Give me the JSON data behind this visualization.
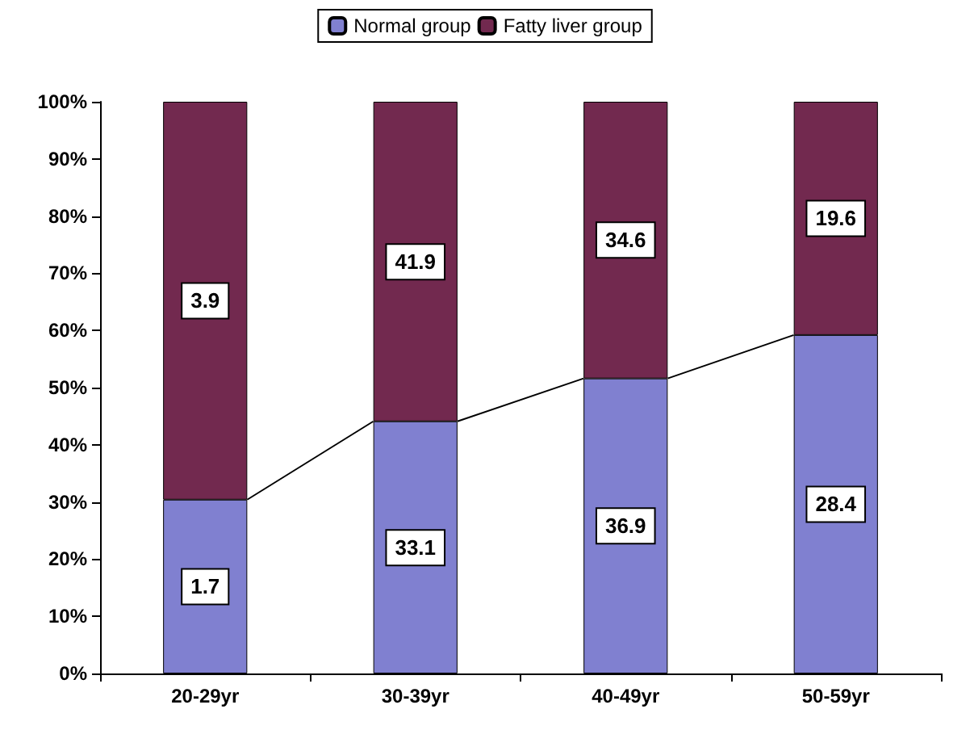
{
  "chart_data": {
    "type": "bar",
    "stacked": true,
    "categories": [
      "20-29yr",
      "30-39yr",
      "40-49yr",
      "50-59yr"
    ],
    "series": [
      {
        "name": "Normal group",
        "color": "#8080d0",
        "values": [
          30.4,
          44.1,
          51.6,
          59.2
        ]
      },
      {
        "name": "Fatty liver group",
        "color": "#72294f",
        "values": [
          69.6,
          55.9,
          48.4,
          40.8
        ]
      }
    ],
    "ylim": [
      0,
      100
    ],
    "yticks": [
      {
        "value": 0,
        "label": "0%"
      },
      {
        "value": 10,
        "label": "10%"
      },
      {
        "value": 20,
        "label": "20%"
      },
      {
        "value": 30,
        "label": "30%"
      },
      {
        "value": 40,
        "label": "40%"
      },
      {
        "value": 50,
        "label": "50%"
      },
      {
        "value": 60,
        "label": "60%"
      },
      {
        "value": 70,
        "label": "70%"
      },
      {
        "value": 80,
        "label": "80%"
      },
      {
        "value": 90,
        "label": "90%"
      },
      {
        "value": 100,
        "label": "100%"
      }
    ],
    "annotations": [
      {
        "text": "1.7",
        "x": "20-29yr",
        "y": 15.2
      },
      {
        "text": "33.1",
        "x": "30-39yr",
        "y": 22
      },
      {
        "text": "36.9",
        "x": "40-49yr",
        "y": 25.8
      },
      {
        "text": "28.4",
        "x": "50-59yr",
        "y": 29.6
      },
      {
        "text": "3.9",
        "x": "20-29yr",
        "y": 65.2
      },
      {
        "text": "41.9",
        "x": "30-39yr",
        "y": 72
      },
      {
        "text": "34.6",
        "x": "40-49yr",
        "y": 75.8
      },
      {
        "text": "19.6",
        "x": "50-59yr",
        "y": 79.6
      }
    ],
    "legend": "top",
    "grid": false
  }
}
